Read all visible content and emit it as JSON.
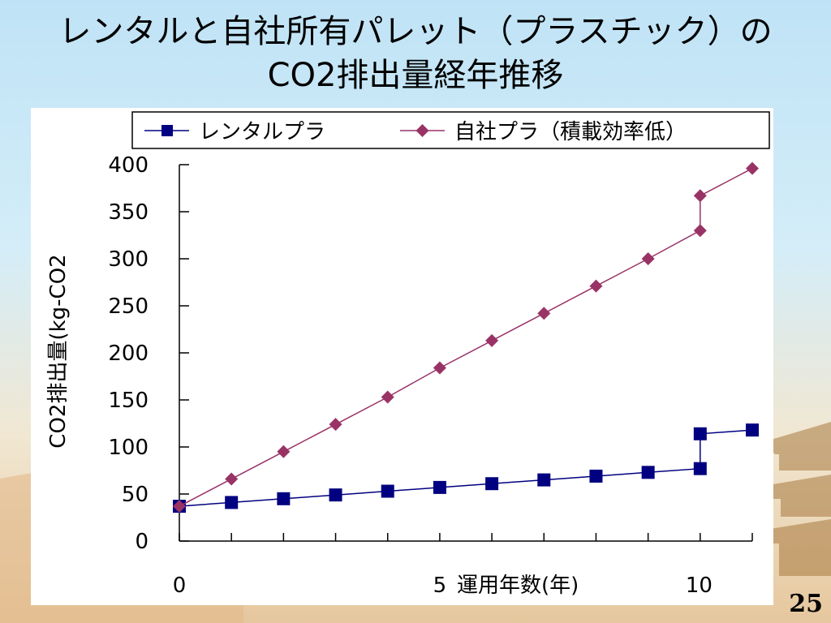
{
  "slide": {
    "title_line1": "レンタルと自社所有パレット（プラスチック）の",
    "title_line2": "CO2排出量経年推移",
    "page_number": "25"
  },
  "colors": {
    "series1": "#000080",
    "series2": "#993366"
  },
  "chart_data": {
    "type": "line",
    "xlabel": "運用年数(年)",
    "ylabel": "CO2排出量(kg-CO2",
    "ylim": [
      0,
      400
    ],
    "xlim": [
      0,
      11
    ],
    "yticks": [
      0,
      50,
      100,
      150,
      200,
      250,
      300,
      350,
      400
    ],
    "xtick_labels": [
      {
        "x": 0,
        "label": "0"
      },
      {
        "x": 5,
        "label": "5"
      },
      {
        "x": 10,
        "label": "10"
      }
    ],
    "grid": false,
    "legend": "top",
    "series": [
      {
        "name": "レンタルプラ",
        "marker": "square",
        "points": [
          [
            0,
            37
          ],
          [
            1,
            41
          ],
          [
            2,
            45
          ],
          [
            3,
            49
          ],
          [
            4,
            53
          ],
          [
            5,
            57
          ],
          [
            6,
            61
          ],
          [
            7,
            65
          ],
          [
            8,
            69
          ],
          [
            9,
            73
          ],
          [
            10,
            77
          ],
          [
            10,
            114
          ],
          [
            11,
            118
          ]
        ]
      },
      {
        "name": "自社プラ（積載効率低）",
        "marker": "diamond",
        "points": [
          [
            0,
            37
          ],
          [
            1,
            66
          ],
          [
            2,
            95
          ],
          [
            3,
            124
          ],
          [
            4,
            153
          ],
          [
            5,
            184
          ],
          [
            6,
            213
          ],
          [
            7,
            242
          ],
          [
            8,
            271
          ],
          [
            9,
            300
          ],
          [
            10,
            330
          ],
          [
            10,
            367
          ],
          [
            11,
            396
          ]
        ]
      }
    ]
  }
}
